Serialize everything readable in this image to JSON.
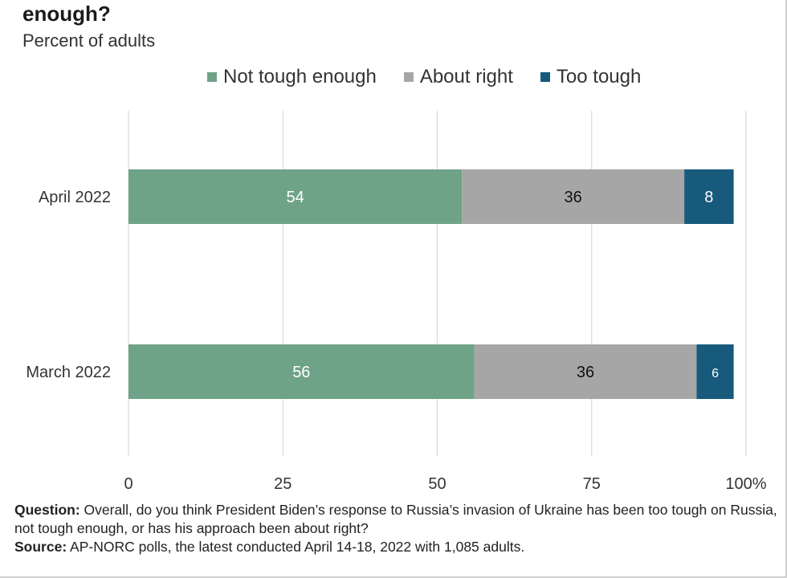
{
  "header": {
    "title": "enough?",
    "subtitle": "Percent of adults"
  },
  "colors": {
    "not_tough_enough": "#6fa388",
    "about_right": "#a6a6a6",
    "too_tough": "#175a7c"
  },
  "chart_data": {
    "type": "bar",
    "orientation": "horizontal",
    "stacked": true,
    "categories": [
      "April 2022",
      "March 2022"
    ],
    "series": [
      {
        "name": "Not tough enough",
        "values": [
          54,
          56
        ],
        "color": "#6fa388"
      },
      {
        "name": "About right",
        "values": [
          36,
          36
        ],
        "color": "#a6a6a6"
      },
      {
        "name": "Too tough",
        "values": [
          8,
          6
        ],
        "color": "#175a7c"
      }
    ],
    "xlim": [
      0,
      100
    ],
    "xticks": [
      "0",
      "25",
      "50",
      "75",
      "100%"
    ],
    "xtick_values": [
      0,
      25,
      50,
      75,
      100
    ],
    "grid": "vertical",
    "legend": "top"
  },
  "footer": {
    "question_label": "Question:",
    "question_text": " Overall, do you think President Biden’s response to Russia’s invasion of Ukraine has been too tough on Russia, not tough enough, or has his approach been about right?",
    "source_label": "Source:",
    "source_text": " AP-NORC polls, the latest conducted April 14-18, 2022 with 1,085 adults."
  }
}
